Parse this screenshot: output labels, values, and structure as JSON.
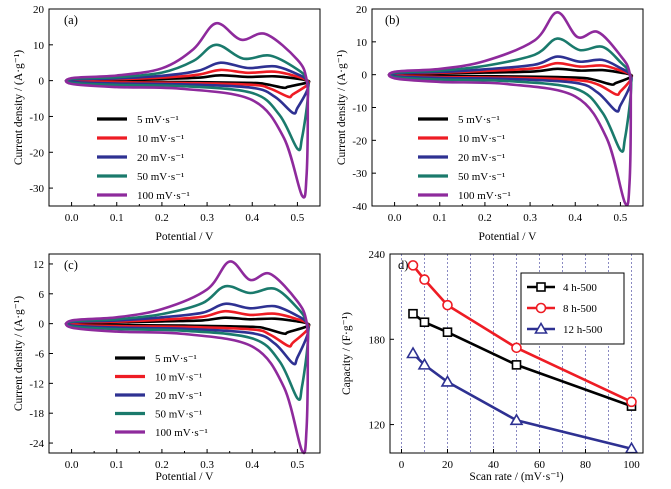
{
  "colors": {
    "s5": "#000000",
    "s10": "#ee1c24",
    "s20": "#2e3192",
    "s50": "#1a7a6c",
    "s100": "#8e2a9c",
    "t4": "#000000",
    "t8": "#ee1c24",
    "t12": "#2e3192",
    "vgrid": "#2e3192"
  },
  "chart_data": [
    {
      "type": "line",
      "panel_label": "(a)",
      "xlabel": "Potential / V",
      "ylabel": "Current density / (A·g⁻¹)",
      "xlim": [
        -0.05,
        0.55
      ],
      "ylim": [
        -35,
        20
      ],
      "x_ticks": [
        "0.0",
        "0.1",
        "0.2",
        "0.3",
        "0.4",
        "0.5"
      ],
      "y_ticks": [
        "20",
        "10",
        "0",
        "-10",
        "-20",
        "-30"
      ],
      "legend_position": "lower-left",
      "series": [
        {
          "name": "5 mV·s⁻¹",
          "anodic_peaks": [
            {
              "x": 0.33,
              "y": 1.5
            },
            {
              "x": 0.45,
              "y": 1.2
            }
          ],
          "cathodic_peak": {
            "x": 0.47,
            "y": -2.0
          },
          "upper_baseline": 0.3,
          "lower_baseline": -0.3
        },
        {
          "name": "10 mV·s⁻¹",
          "anodic_peaks": [
            {
              "x": 0.33,
              "y": 3.0
            },
            {
              "x": 0.45,
              "y": 2.5
            }
          ],
          "cathodic_peak": {
            "x": 0.48,
            "y": -4.5
          },
          "upper_baseline": 0.5,
          "lower_baseline": -0.5
        },
        {
          "name": "20 mV·s⁻¹",
          "anodic_peaks": [
            {
              "x": 0.33,
              "y": 5.0
            },
            {
              "x": 0.45,
              "y": 4.0
            }
          ],
          "cathodic_peak": {
            "x": 0.49,
            "y": -9.0
          },
          "upper_baseline": 0.8,
          "lower_baseline": -0.8
        },
        {
          "name": "50 mV·s⁻¹",
          "anodic_peaks": [
            {
              "x": 0.32,
              "y": 10.0
            },
            {
              "x": 0.44,
              "y": 7.0
            }
          ],
          "cathodic_peak": {
            "x": 0.5,
            "y": -19.0
          },
          "upper_baseline": 1.2,
          "lower_baseline": -1.2
        },
        {
          "name": "100 mV·s⁻¹",
          "anodic_peaks": [
            {
              "x": 0.32,
              "y": 16.0
            },
            {
              "x": 0.43,
              "y": 13.0
            }
          ],
          "cathodic_peak": {
            "x": 0.51,
            "y": -32.0
          },
          "upper_baseline": 1.8,
          "lower_baseline": -1.8
        }
      ]
    },
    {
      "type": "line",
      "panel_label": "(b)",
      "xlabel": "Potential / V",
      "ylabel": "Current density / (A·g⁻¹)",
      "xlim": [
        -0.05,
        0.55
      ],
      "ylim": [
        -40,
        20
      ],
      "x_ticks": [
        "0.0",
        "0.1",
        "0.2",
        "0.3",
        "0.4",
        "0.5"
      ],
      "y_ticks": [
        "20",
        "10",
        "0",
        "-10",
        "-20",
        "-30",
        "-40"
      ],
      "legend_position": "lower-right",
      "series": [
        {
          "name": "5 mV·s⁻¹",
          "anodic_peaks": [
            {
              "x": 0.36,
              "y": 1.8
            },
            {
              "x": 0.46,
              "y": 1.4
            }
          ],
          "cathodic_peak": {
            "x": 0.48,
            "y": -3.0
          },
          "upper_baseline": 0.4,
          "lower_baseline": -0.4
        },
        {
          "name": "10 mV·s⁻¹",
          "anodic_peaks": [
            {
              "x": 0.36,
              "y": 3.5
            },
            {
              "x": 0.46,
              "y": 2.8
            }
          ],
          "cathodic_peak": {
            "x": 0.49,
            "y": -6.0
          },
          "upper_baseline": 0.7,
          "lower_baseline": -0.7
        },
        {
          "name": "20 mV·s⁻¹",
          "anodic_peaks": [
            {
              "x": 0.36,
              "y": 5.5
            },
            {
              "x": 0.46,
              "y": 4.5
            }
          ],
          "cathodic_peak": {
            "x": 0.49,
            "y": -11.0
          },
          "upper_baseline": 1.0,
          "lower_baseline": -1.0
        },
        {
          "name": "50 mV·s⁻¹",
          "anodic_peaks": [
            {
              "x": 0.36,
              "y": 11.0
            },
            {
              "x": 0.46,
              "y": 8.5
            }
          ],
          "cathodic_peak": {
            "x": 0.5,
            "y": -23.0
          },
          "upper_baseline": 1.5,
          "lower_baseline": -1.5
        },
        {
          "name": "100 mV·s⁻¹",
          "anodic_peaks": [
            {
              "x": 0.36,
              "y": 19.0
            },
            {
              "x": 0.45,
              "y": 13.0
            }
          ],
          "cathodic_peak": {
            "x": 0.51,
            "y": -39.0
          },
          "upper_baseline": 2.2,
          "lower_baseline": -2.2
        }
      ]
    },
    {
      "type": "line",
      "panel_label": "(c)",
      "xlabel": "Potential / V",
      "ylabel": "Current density / (A·g⁻¹)",
      "xlim": [
        -0.05,
        0.55
      ],
      "ylim": [
        -26,
        14
      ],
      "x_ticks": [
        "0.0",
        "0.1",
        "0.2",
        "0.3",
        "0.4",
        "0.5"
      ],
      "y_ticks": [
        "12",
        "6",
        "0",
        "-6",
        "-12",
        "-18",
        "-24"
      ],
      "legend_position": "lower-left",
      "series": [
        {
          "name": "5 mV·s⁻¹",
          "anodic_peaks": [
            {
              "x": 0.34,
              "y": 1.2
            },
            {
              "x": 0.45,
              "y": 1.0
            }
          ],
          "cathodic_peak": {
            "x": 0.47,
            "y": -2.0
          },
          "upper_baseline": 0.3,
          "lower_baseline": -0.3
        },
        {
          "name": "10 mV·s⁻¹",
          "anodic_peaks": [
            {
              "x": 0.34,
              "y": 2.5
            },
            {
              "x": 0.45,
              "y": 2.0
            }
          ],
          "cathodic_peak": {
            "x": 0.48,
            "y": -4.5
          },
          "upper_baseline": 0.5,
          "lower_baseline": -0.5
        },
        {
          "name": "20 mV·s⁻¹",
          "anodic_peaks": [
            {
              "x": 0.34,
              "y": 4.0
            },
            {
              "x": 0.45,
              "y": 3.5
            }
          ],
          "cathodic_peak": {
            "x": 0.49,
            "y": -8.0
          },
          "upper_baseline": 0.8,
          "lower_baseline": -0.8
        },
        {
          "name": "50 mV·s⁻¹",
          "anodic_peaks": [
            {
              "x": 0.34,
              "y": 7.5
            },
            {
              "x": 0.45,
              "y": 7.0
            }
          ],
          "cathodic_peak": {
            "x": 0.5,
            "y": -15.0
          },
          "upper_baseline": 1.1,
          "lower_baseline": -1.1
        },
        {
          "name": "100 mV·s⁻¹",
          "anodic_peaks": [
            {
              "x": 0.35,
              "y": 12.5
            },
            {
              "x": 0.44,
              "y": 10.0
            }
          ],
          "cathodic_peak": {
            "x": 0.51,
            "y": -25.5
          },
          "upper_baseline": 1.6,
          "lower_baseline": -1.6
        }
      ]
    },
    {
      "type": "line",
      "panel_label": "d)",
      "xlabel": "Scan rate / (mV·s⁻¹)",
      "ylabel": "Capacity / (F·g⁻¹)",
      "xlim": [
        -5,
        105
      ],
      "ylim": [
        100,
        240
      ],
      "x_ticks": [
        "0",
        "20",
        "40",
        "60",
        "80",
        "100"
      ],
      "y_ticks": [
        "240",
        "180",
        "120"
      ],
      "vertical_gridlines_at": [
        0,
        10,
        20,
        30,
        40,
        50,
        60,
        70,
        80,
        90,
        100
      ],
      "legend_position": "top-right",
      "series": [
        {
          "name": "4 h-500",
          "marker": "square",
          "x": [
            5,
            10,
            20,
            50,
            100
          ],
          "y": [
            198,
            192,
            185,
            162,
            133
          ]
        },
        {
          "name": "8 h-500",
          "marker": "circle",
          "x": [
            5,
            10,
            20,
            50,
            100
          ],
          "y": [
            232,
            222,
            204,
            174,
            136
          ]
        },
        {
          "name": "12 h-500",
          "marker": "triangle",
          "x": [
            5,
            10,
            20,
            50,
            100
          ],
          "y": [
            170,
            162,
            150,
            123,
            103
          ]
        }
      ]
    }
  ]
}
